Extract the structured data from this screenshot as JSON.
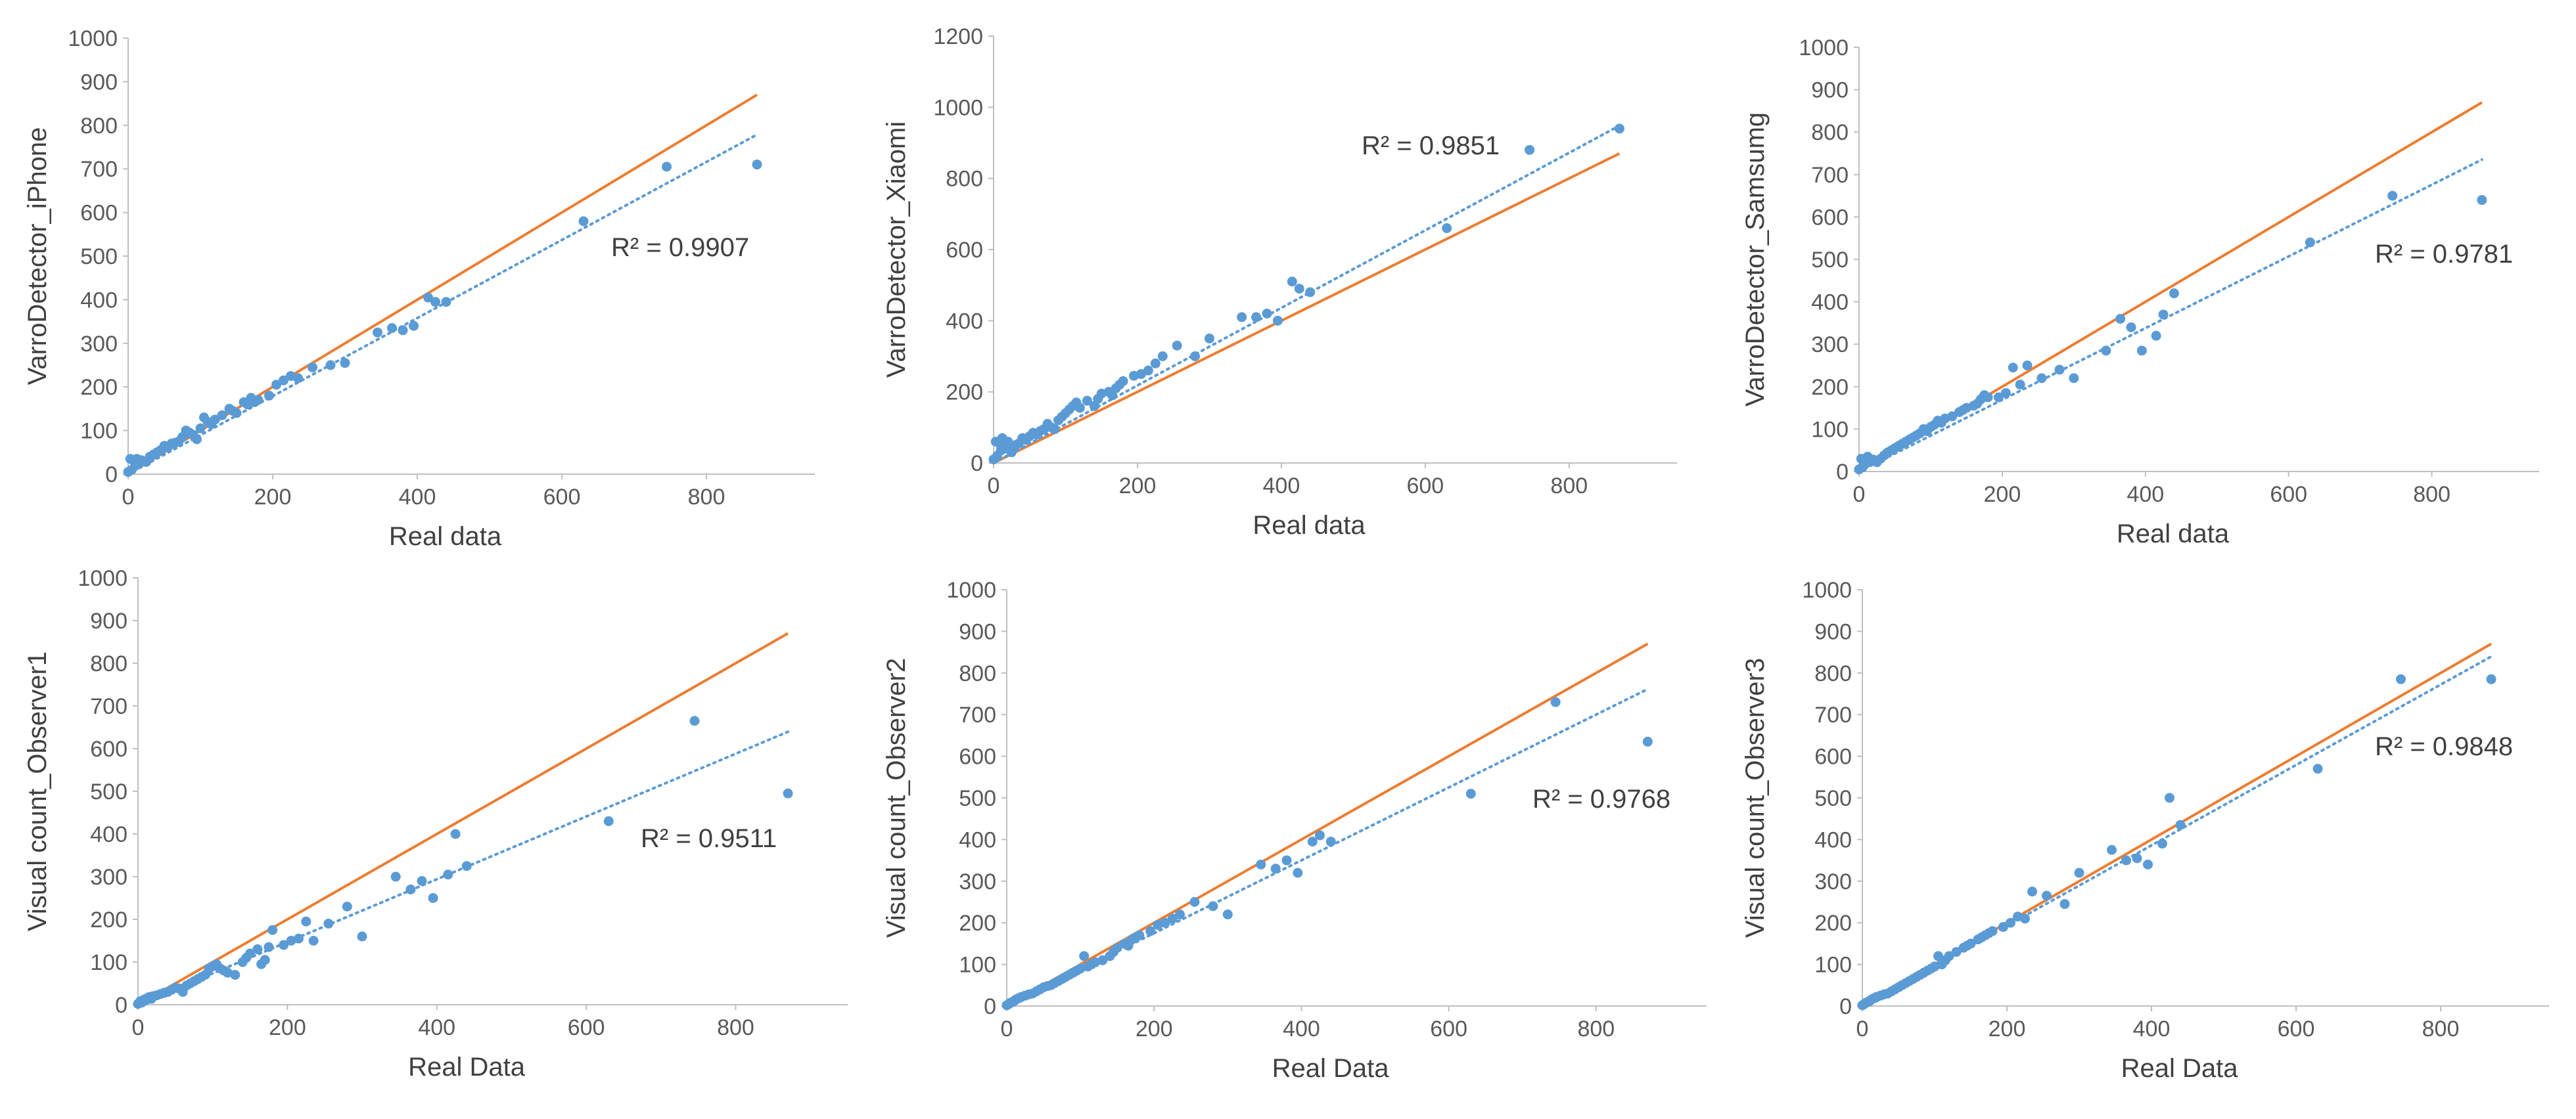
{
  "colors": {
    "points": "#5B9BD5",
    "identity_line": "#ED7D31",
    "axis": "#BFBFBF",
    "text": "#404040"
  },
  "chart_data": [
    {
      "type": "scatter",
      "xlabel": "Real data",
      "ylabel": "VarroDetector_iPhone",
      "xlim": [
        0,
        950
      ],
      "ylim": [
        0,
        1000
      ],
      "xticks": [
        0,
        200,
        400,
        600,
        800
      ],
      "yticks": [
        0,
        100,
        200,
        300,
        400,
        500,
        600,
        700,
        800,
        900,
        1000
      ],
      "r2_label": "R² = 0.9907",
      "trend_slope": 0.895,
      "identity_line": true,
      "series": [
        {
          "x": [
            0,
            3,
            5,
            8,
            10,
            12,
            15,
            18,
            20,
            25,
            30,
            35,
            40,
            45,
            50,
            55,
            60,
            65,
            70,
            75,
            80,
            85,
            90,
            95,
            100,
            105,
            110,
            115,
            120,
            130,
            140,
            145,
            150,
            160,
            165,
            170,
            175,
            180,
            195,
            205,
            215,
            225,
            235,
            255,
            280,
            300,
            345,
            365,
            380,
            395,
            415,
            425,
            440,
            630,
            745,
            870
          ],
          "y": [
            5,
            35,
            10,
            30,
            20,
            35,
            25,
            32,
            30,
            28,
            40,
            45,
            50,
            55,
            65,
            62,
            70,
            72,
            75,
            85,
            100,
            95,
            90,
            80,
            105,
            130,
            120,
            115,
            125,
            135,
            150,
            145,
            140,
            165,
            160,
            175,
            165,
            170,
            180,
            205,
            215,
            225,
            220,
            245,
            250,
            255,
            325,
            335,
            330,
            340,
            405,
            395,
            395,
            580,
            705,
            710
          ]
        }
      ]
    },
    {
      "type": "scatter",
      "xlabel": "Real data",
      "ylabel": "VarroDetector_Xiaomi",
      "xlim": [
        0,
        950
      ],
      "ylim": [
        0,
        1200
      ],
      "xticks": [
        0,
        200,
        400,
        600,
        800
      ],
      "yticks": [
        0,
        200,
        400,
        600,
        800,
        1000,
        1200
      ],
      "r2_label": "R² = 0.9851",
      "trend_slope": 1.09,
      "identity_line": true,
      "series": [
        {
          "x": [
            0,
            3,
            5,
            8,
            10,
            12,
            15,
            18,
            20,
            25,
            30,
            35,
            40,
            45,
            50,
            55,
            60,
            65,
            70,
            75,
            80,
            85,
            90,
            95,
            100,
            105,
            110,
            115,
            120,
            130,
            140,
            145,
            150,
            160,
            165,
            170,
            175,
            180,
            195,
            205,
            215,
            225,
            235,
            255,
            280,
            300,
            345,
            365,
            380,
            395,
            415,
            425,
            440,
            630,
            745,
            870
          ],
          "y": [
            10,
            60,
            20,
            55,
            35,
            70,
            45,
            40,
            60,
            30,
            50,
            55,
            70,
            65,
            75,
            85,
            80,
            90,
            95,
            110,
            100,
            95,
            120,
            130,
            140,
            150,
            160,
            170,
            155,
            175,
            160,
            180,
            195,
            200,
            190,
            210,
            220,
            230,
            245,
            250,
            260,
            280,
            300,
            330,
            300,
            350,
            410,
            410,
            420,
            400,
            510,
            490,
            480,
            660,
            880,
            940
          ]
        }
      ]
    },
    {
      "type": "scatter",
      "xlabel": "Real data",
      "ylabel": "VarroDetector_Samsumg",
      "xlim": [
        0,
        950
      ],
      "ylim": [
        0,
        1000
      ],
      "xticks": [
        0,
        200,
        400,
        600,
        800
      ],
      "yticks": [
        0,
        100,
        200,
        300,
        400,
        500,
        600,
        700,
        800,
        900,
        1000
      ],
      "r2_label": "R² = 0.9781",
      "trend_slope": 0.845,
      "identity_line": true,
      "series": [
        {
          "x": [
            0,
            3,
            5,
            8,
            10,
            12,
            15,
            18,
            20,
            25,
            30,
            35,
            40,
            45,
            50,
            55,
            60,
            65,
            70,
            75,
            80,
            85,
            90,
            95,
            100,
            105,
            110,
            115,
            120,
            130,
            140,
            145,
            150,
            160,
            165,
            170,
            175,
            180,
            195,
            205,
            215,
            225,
            235,
            255,
            280,
            300,
            345,
            365,
            380,
            395,
            415,
            425,
            440,
            630,
            745,
            870
          ],
          "y": [
            5,
            30,
            10,
            25,
            20,
            35,
            30,
            25,
            28,
            22,
            30,
            38,
            45,
            50,
            55,
            60,
            65,
            70,
            75,
            80,
            85,
            90,
            100,
            95,
            105,
            110,
            120,
            115,
            125,
            130,
            140,
            145,
            150,
            155,
            160,
            170,
            180,
            175,
            175,
            185,
            245,
            205,
            250,
            220,
            240,
            220,
            285,
            360,
            340,
            285,
            320,
            370,
            420,
            540,
            650,
            640
          ]
        }
      ]
    },
    {
      "type": "scatter",
      "xlabel": "Real Data",
      "ylabel": "Visual count_Observer1",
      "xlim": [
        0,
        950
      ],
      "ylim": [
        0,
        1000
      ],
      "xticks": [
        0,
        200,
        400,
        600,
        800
      ],
      "yticks": [
        0,
        100,
        200,
        300,
        400,
        500,
        600,
        700,
        800,
        900,
        1000
      ],
      "r2_label": "R² = 0.9511",
      "trend_slope": 0.735,
      "identity_line": true,
      "series": [
        {
          "x": [
            0,
            3,
            5,
            8,
            10,
            12,
            15,
            18,
            20,
            25,
            30,
            35,
            40,
            45,
            50,
            55,
            60,
            65,
            70,
            75,
            80,
            85,
            90,
            95,
            100,
            105,
            110,
            115,
            120,
            130,
            140,
            145,
            150,
            160,
            165,
            170,
            175,
            180,
            195,
            205,
            215,
            225,
            235,
            255,
            280,
            300,
            345,
            365,
            380,
            395,
            415,
            425,
            440,
            630,
            745,
            870
          ],
          "y": [
            2,
            8,
            5,
            12,
            10,
            15,
            18,
            14,
            20,
            22,
            25,
            28,
            30,
            35,
            40,
            38,
            30,
            45,
            50,
            55,
            60,
            65,
            70,
            85,
            90,
            95,
            85,
            80,
            75,
            70,
            100,
            110,
            120,
            130,
            95,
            105,
            135,
            175,
            140,
            150,
            155,
            195,
            150,
            190,
            230,
            160,
            300,
            270,
            290,
            250,
            305,
            400,
            325,
            430,
            665,
            495
          ]
        }
      ]
    },
    {
      "type": "scatter",
      "xlabel": "Real Data",
      "ylabel": "Visual count_Observer2",
      "xlim": [
        0,
        950
      ],
      "ylim": [
        0,
        1000
      ],
      "xticks": [
        0,
        200,
        400,
        600,
        800
      ],
      "yticks": [
        0,
        100,
        200,
        300,
        400,
        500,
        600,
        700,
        800,
        900,
        1000
      ],
      "r2_label": "R² = 0.9768",
      "trend_slope": 0.875,
      "identity_line": true,
      "series": [
        {
          "x": [
            0,
            3,
            5,
            8,
            10,
            12,
            15,
            18,
            20,
            25,
            30,
            35,
            40,
            45,
            50,
            55,
            60,
            65,
            70,
            75,
            80,
            85,
            90,
            95,
            100,
            105,
            110,
            115,
            120,
            130,
            140,
            145,
            150,
            160,
            165,
            170,
            175,
            180,
            195,
            205,
            215,
            225,
            235,
            255,
            280,
            300,
            345,
            365,
            380,
            395,
            415,
            425,
            440,
            630,
            745,
            870
          ],
          "y": [
            2,
            5,
            8,
            10,
            12,
            15,
            18,
            20,
            22,
            25,
            28,
            30,
            35,
            40,
            45,
            48,
            50,
            55,
            60,
            65,
            70,
            75,
            80,
            85,
            90,
            120,
            95,
            100,
            105,
            110,
            120,
            130,
            140,
            150,
            145,
            160,
            165,
            170,
            180,
            195,
            200,
            210,
            220,
            250,
            240,
            220,
            340,
            330,
            350,
            320,
            395,
            410,
            395,
            510,
            730,
            635
          ]
        }
      ]
    },
    {
      "type": "scatter",
      "xlabel": "Real Data",
      "ylabel": "Visual count_Observer3",
      "xlim": [
        0,
        950
      ],
      "ylim": [
        0,
        1000
      ],
      "xticks": [
        0,
        200,
        400,
        600,
        800
      ],
      "yticks": [
        0,
        100,
        200,
        300,
        400,
        500,
        600,
        700,
        800,
        900,
        1000
      ],
      "r2_label": "R² = 0.9848",
      "trend_slope": 0.965,
      "identity_line": true,
      "series": [
        {
          "x": [
            0,
            3,
            5,
            8,
            10,
            12,
            15,
            18,
            20,
            25,
            30,
            35,
            40,
            45,
            50,
            55,
            60,
            65,
            70,
            75,
            80,
            85,
            90,
            95,
            100,
            105,
            110,
            115,
            120,
            130,
            140,
            145,
            150,
            160,
            165,
            170,
            175,
            180,
            195,
            205,
            215,
            225,
            235,
            255,
            280,
            300,
            345,
            365,
            380,
            395,
            415,
            425,
            440,
            630,
            745,
            870
          ],
          "y": [
            2,
            5,
            8,
            10,
            12,
            15,
            18,
            20,
            22,
            25,
            28,
            30,
            35,
            40,
            45,
            50,
            55,
            60,
            65,
            70,
            75,
            80,
            85,
            90,
            95,
            120,
            100,
            110,
            120,
            130,
            140,
            145,
            150,
            160,
            165,
            170,
            175,
            180,
            190,
            200,
            215,
            210,
            275,
            265,
            245,
            320,
            375,
            350,
            355,
            340,
            390,
            500,
            435,
            570,
            785,
            785
          ]
        }
      ]
    }
  ]
}
